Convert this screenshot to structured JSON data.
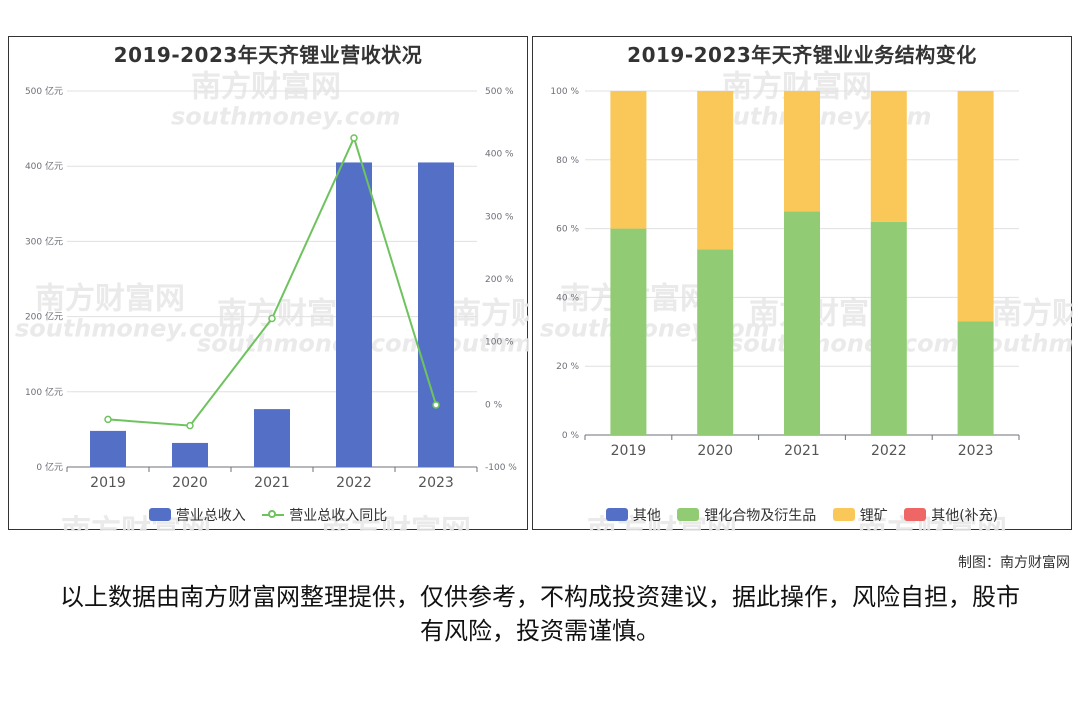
{
  "chart_data": [
    {
      "type": "bar",
      "title": "2019-2023年天齐锂业营收状况",
      "categories": [
        "2019",
        "2020",
        "2021",
        "2022",
        "2023"
      ],
      "series": [
        {
          "name": "营业总收入",
          "type": "bar",
          "axis": "left",
          "color": "#5470c6",
          "values": [
            48,
            32,
            77,
            405,
            405
          ]
        },
        {
          "name": "营业总收入同比",
          "type": "line",
          "axis": "right",
          "color": "#6ec35e",
          "values": [
            -24,
            -34,
            137,
            425,
            -1
          ]
        }
      ],
      "ylim_left": [
        0,
        500
      ],
      "ylim_right": [
        -100,
        500
      ],
      "y_ticks_left": [
        "0 亿元",
        "100 亿元",
        "200 亿元",
        "300 亿元",
        "400 亿元",
        "500 亿元"
      ],
      "y_ticks_right": [
        "-100 %",
        "0 %",
        "100 %",
        "200 %",
        "300 %",
        "400 %",
        "500 %"
      ],
      "grid": true,
      "legend_position": "bottom"
    },
    {
      "type": "bar",
      "stacked": true,
      "title": "2019-2023年天齐锂业业务结构变化",
      "categories": [
        "2019",
        "2020",
        "2021",
        "2022",
        "2023"
      ],
      "series": [
        {
          "name": "其他",
          "color": "#5470c6",
          "values": [
            0,
            0,
            0,
            0,
            0
          ]
        },
        {
          "name": "锂化合物及衍生品",
          "color": "#91cc75",
          "values": [
            60,
            54,
            65,
            62,
            33
          ]
        },
        {
          "name": "锂矿",
          "color": "#fac858",
          "values": [
            40,
            46,
            35,
            38,
            67
          ]
        },
        {
          "name": "其他(补充)",
          "color": "#ee6666",
          "values": [
            0,
            0,
            0,
            0,
            0
          ]
        }
      ],
      "ylim": [
        0,
        100
      ],
      "y_ticks": [
        "0 %",
        "20 %",
        "40 %",
        "60 %",
        "80 %",
        "100 %"
      ],
      "grid": true,
      "legend_position": "bottom"
    }
  ],
  "credit": "制图：南方财富网",
  "disclaimer": "以上数据由南方财富网整理提供，仅供参考，不构成投资建议，据此操作，风险自担，股市有风险，投资需谨慎。",
  "watermark": {
    "cn": "南方财富网",
    "en": "southmoney.com"
  }
}
